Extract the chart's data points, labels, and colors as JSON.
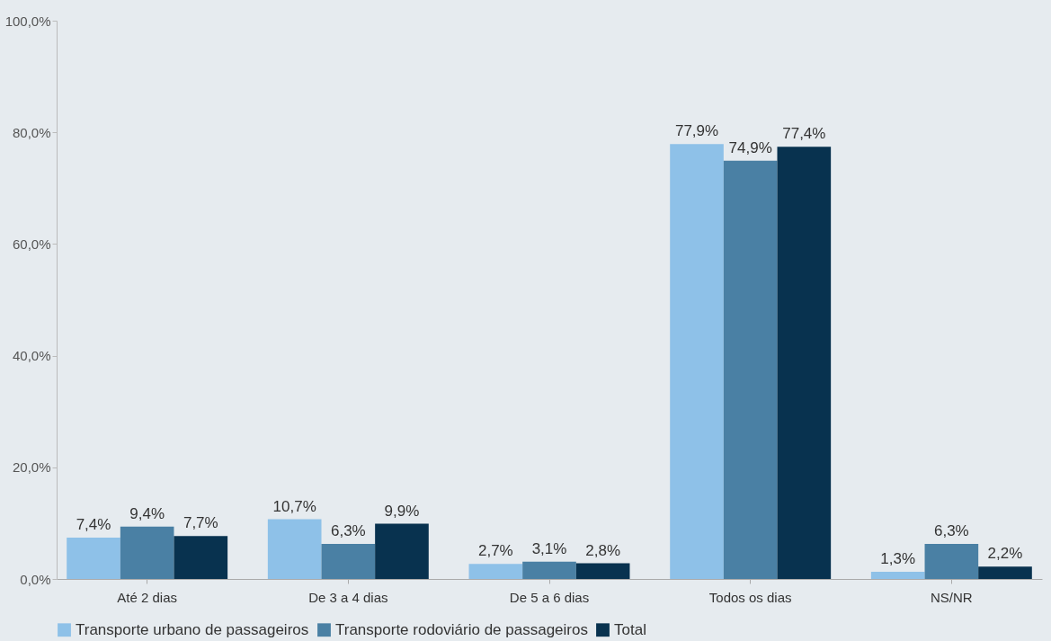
{
  "chart_data": {
    "type": "bar",
    "categories": [
      "Até 2 dias",
      "De 3 a 4 dias",
      "De 5 a 6 dias",
      "Todos os dias",
      "NS/NR"
    ],
    "series": [
      {
        "name": "Transporte urbano de passageiros",
        "color": "#8ec1e8",
        "values": [
          7.4,
          10.7,
          2.7,
          77.9,
          1.3
        ],
        "value_labels": [
          "7,4%",
          "10,7%",
          "2,7%",
          "77,9%",
          "1,3%"
        ]
      },
      {
        "name": "Transporte rodoviário de passageiros",
        "color": "#4a80a4",
        "values": [
          9.4,
          6.3,
          3.1,
          74.9,
          6.3
        ],
        "value_labels": [
          "9,4%",
          "6,3%",
          "3,1%",
          "74,9%",
          "6,3%"
        ]
      },
      {
        "name": "Total",
        "color": "#08324f",
        "values": [
          7.7,
          9.9,
          2.8,
          77.4,
          2.2
        ],
        "value_labels": [
          "7,7%",
          "9,9%",
          "2,8%",
          "77,4%",
          "2,2%"
        ]
      }
    ],
    "ylim": [
      0,
      100
    ],
    "yticks": [
      {
        "value": 0,
        "label": "0,0%"
      },
      {
        "value": 20,
        "label": "20,0%"
      },
      {
        "value": 40,
        "label": "40,0%"
      },
      {
        "value": 60,
        "label": "60,0%"
      },
      {
        "value": 80,
        "label": "80,0%"
      },
      {
        "value": 100,
        "label": "100,0%"
      }
    ],
    "legend": "bottom"
  }
}
